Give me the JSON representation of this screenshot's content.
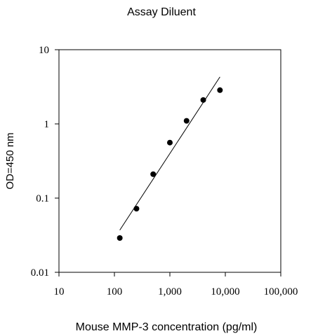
{
  "chart_data": {
    "type": "scatter",
    "title": "Assay Diluent",
    "xlabel": "Mouse MMP-3 concentration (pg/ml)",
    "ylabel": "OD=450 nm",
    "x_scale": "log",
    "y_scale": "log",
    "xlim": [
      10,
      100000
    ],
    "ylim": [
      0.01,
      10
    ],
    "x_ticks": [
      10,
      100,
      1000,
      10000,
      100000
    ],
    "x_tick_labels": [
      "10",
      "100",
      "1,000",
      "10,000",
      "100,000"
    ],
    "y_ticks": [
      0.01,
      0.1,
      1,
      10
    ],
    "y_tick_labels": [
      "0.01",
      "0.1",
      "1",
      "10"
    ],
    "grid": false,
    "series": [
      {
        "points": [
          {
            "x": 125,
            "y": 0.029
          },
          {
            "x": 250,
            "y": 0.072
          },
          {
            "x": 500,
            "y": 0.21
          },
          {
            "x": 1000,
            "y": 0.56
          },
          {
            "x": 2000,
            "y": 1.1
          },
          {
            "x": 4000,
            "y": 2.1
          },
          {
            "x": 8000,
            "y": 2.85
          }
        ]
      }
    ],
    "fit_line": {
      "points": [
        {
          "x": 125,
          "y": 0.037
        },
        {
          "x": 8000,
          "y": 4.3
        }
      ]
    },
    "colors": {
      "marker": "#000000",
      "line": "#000000",
      "axis": "#000000"
    }
  }
}
